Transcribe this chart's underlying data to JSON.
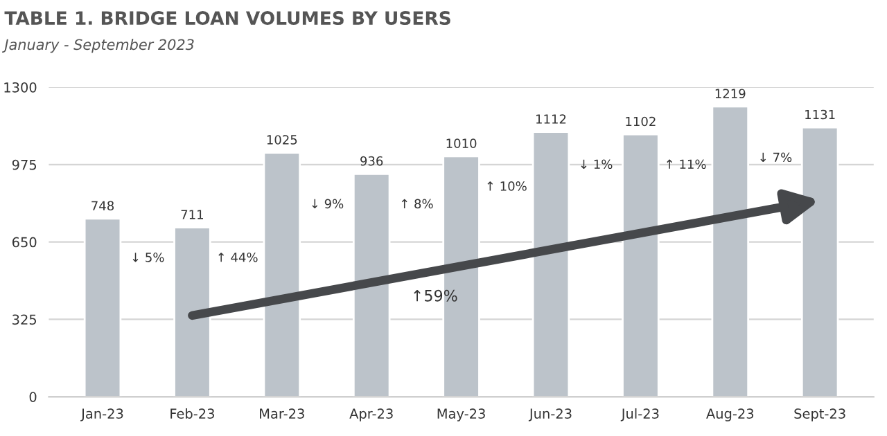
{
  "chart_data": {
    "type": "bar",
    "title": "TABLE 1. BRIDGE LOAN VOLUMES BY USERS",
    "subtitle": "January - September 2023",
    "categories": [
      "Jan-23",
      "Feb-23",
      "Mar-23",
      "Apr-23",
      "May-23",
      "Jun-23",
      "Jul-23",
      "Aug-23",
      "Sept-23"
    ],
    "values": [
      748,
      711,
      1025,
      936,
      1010,
      1112,
      1102,
      1219,
      1131
    ],
    "color": "#bcc3ca",
    "data_labels": true,
    "ylim": [
      0,
      1300
    ],
    "yticks": [
      0,
      325,
      650,
      975,
      1300
    ],
    "grid": "y",
    "annotations": [
      "↓ 5%",
      "↑ 44%",
      "↓ 9%",
      "↑ 8%",
      "↑ 10%",
      "↓ 1%",
      "↑ 11%",
      "↓ 7%",
      "↑59%"
    ]
  }
}
